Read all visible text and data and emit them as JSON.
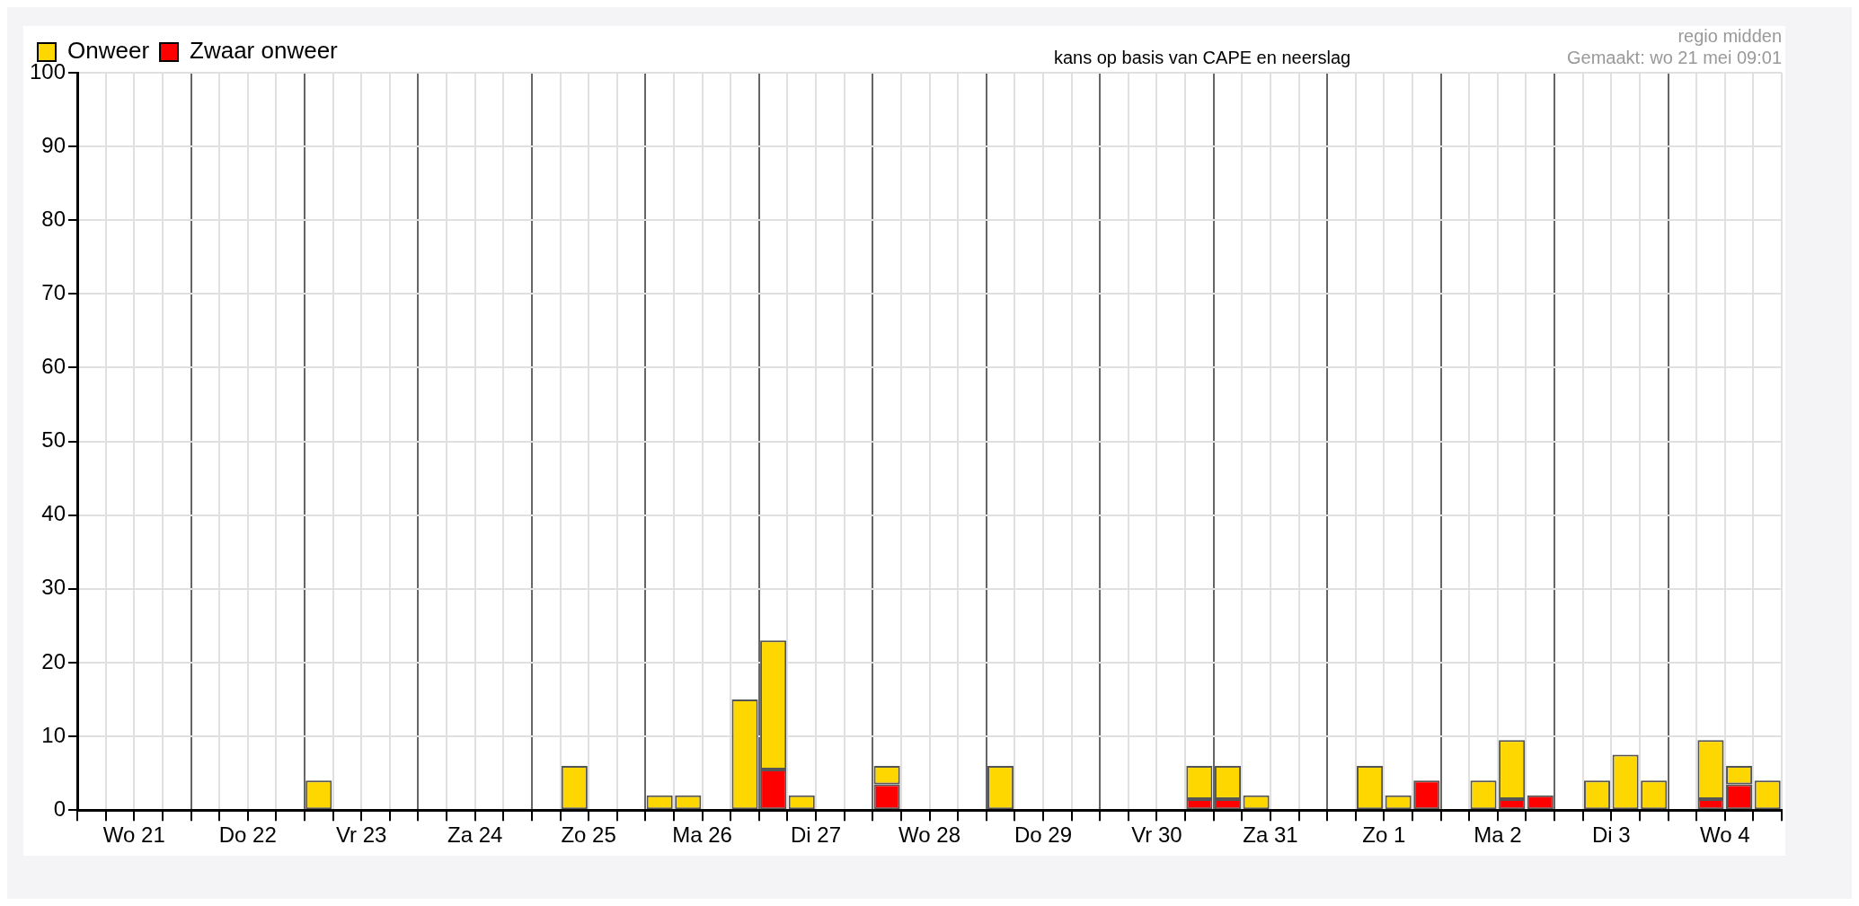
{
  "chart_data": {
    "type": "bar",
    "title": "kans op basis van CAPE en neerslag",
    "annotations": [
      "regio midden",
      "Gemaakt: wo 21 mei 09:01"
    ],
    "categories": [
      null,
      "Wo 21",
      null,
      null,
      null,
      "Do 22",
      null,
      null,
      null,
      "Vr 23",
      null,
      null,
      null,
      "Za 24",
      null,
      null,
      null,
      "Zo 25",
      null,
      null,
      null,
      "Ma 26",
      null,
      null,
      null,
      "Di 27",
      null,
      null,
      null,
      "Wo 28",
      null,
      null,
      null,
      "Do 29",
      null,
      null,
      null,
      "Vr 30",
      null,
      null,
      null,
      "Za 31",
      null,
      null,
      null,
      "Zo 1",
      null,
      null,
      null,
      "Ma 2",
      null,
      null,
      null,
      "Di 3",
      null,
      null,
      null,
      "Wo 4",
      null,
      null
    ],
    "stacked": true,
    "series": [
      {
        "name": "Zwaar onweer",
        "color": "#ff0000",
        "values": [
          null,
          null,
          null,
          null,
          null,
          null,
          null,
          null,
          null,
          null,
          null,
          null,
          null,
          null,
          null,
          null,
          null,
          null,
          null,
          null,
          null,
          null,
          null,
          null,
          5.5,
          null,
          null,
          null,
          3.5,
          null,
          null,
          null,
          null,
          null,
          null,
          null,
          null,
          null,
          null,
          1.5,
          1.5,
          null,
          null,
          null,
          null,
          null,
          null,
          4,
          null,
          null,
          1.5,
          2,
          null,
          null,
          null,
          null,
          null,
          1.5,
          3.5,
          null
        ]
      },
      {
        "name": "Onweer",
        "color": "#ffd700",
        "values": [
          null,
          null,
          null,
          null,
          null,
          null,
          null,
          null,
          4,
          null,
          null,
          null,
          null,
          null,
          null,
          null,
          null,
          6,
          null,
          null,
          2,
          2,
          null,
          15,
          17.5,
          2,
          null,
          null,
          2.5,
          null,
          null,
          null,
          6,
          null,
          null,
          null,
          null,
          null,
          null,
          4.5,
          4.5,
          2,
          null,
          null,
          null,
          6,
          2,
          null,
          null,
          4,
          8,
          null,
          null,
          4,
          7.5,
          4,
          null,
          8,
          2.5,
          4
        ]
      }
    ],
    "ylim": [
      0,
      100
    ],
    "yticks": [
      0,
      10,
      20,
      30,
      40,
      50,
      60,
      70,
      80,
      90,
      100
    ],
    "grid": true,
    "legend": "top left"
  }
}
